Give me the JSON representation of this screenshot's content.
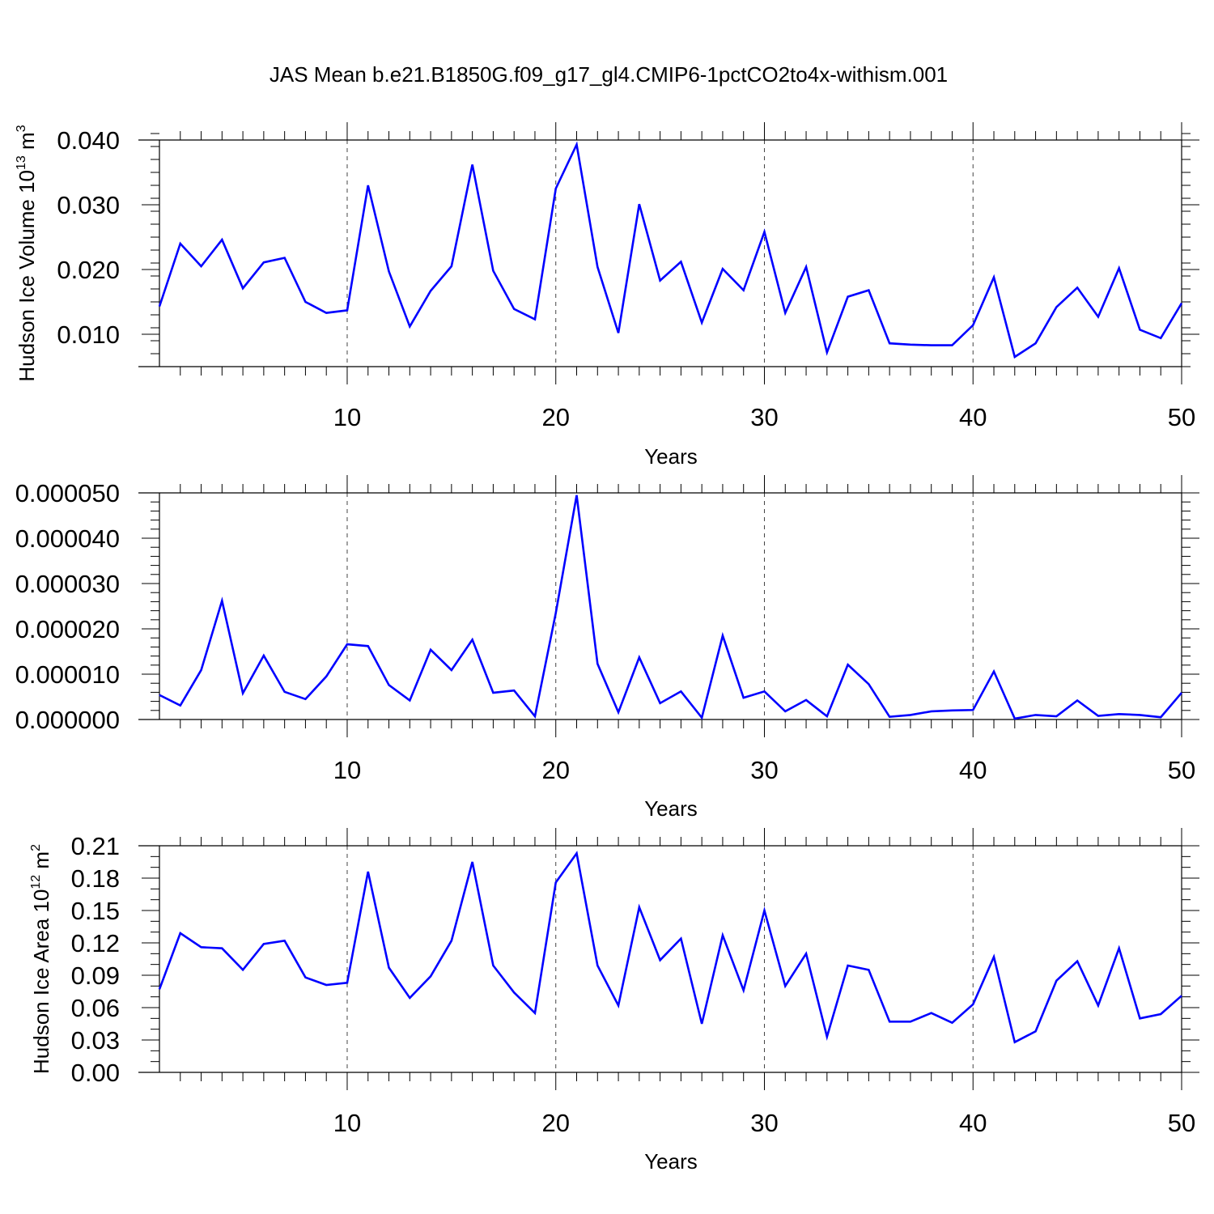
{
  "figure": {
    "title": "JAS Mean b.e21.B1850G.f09_g17_gl4.CMIP6-1pctCO2to4x-withism.001",
    "line_color": "#0000ff",
    "grid_color": "#444444"
  },
  "chart_data": [
    {
      "type": "line",
      "title": "",
      "xlabel": "Years",
      "ylabel": "Hudson Ice Volume 10",
      "ylabel_exp": "13",
      "ylabel_unit": "m",
      "ylabel_unit_exp": "3",
      "xlim": [
        1,
        50
      ],
      "ylim": [
        0.005,
        0.04
      ],
      "y_ticks": [
        0.01,
        0.02,
        0.03,
        0.04
      ],
      "y_tick_labels": [
        "0.010",
        "0.020",
        "0.030",
        "0.040"
      ],
      "y_minor_step": 0.002,
      "x_ticks": [
        10,
        20,
        30,
        40,
        50
      ],
      "x_tick_labels": [
        "10",
        "20",
        "30",
        "40",
        "50"
      ],
      "x_grid": [
        10,
        20,
        30,
        40
      ],
      "grid": "vertical dashed at major x ticks",
      "x": [
        1,
        2,
        3,
        4,
        5,
        6,
        7,
        8,
        9,
        10,
        11,
        12,
        13,
        14,
        15,
        16,
        17,
        18,
        19,
        20,
        21,
        22,
        23,
        24,
        25,
        26,
        27,
        28,
        29,
        30,
        31,
        32,
        33,
        34,
        35,
        36,
        37,
        38,
        39,
        40,
        41,
        42,
        43,
        44,
        45,
        46,
        47,
        48,
        49,
        50
      ],
      "series": [
        {
          "values": [
            0.0143,
            0.024,
            0.0205,
            0.0246,
            0.0171,
            0.0211,
            0.0218,
            0.015,
            0.0133,
            0.0137,
            0.033,
            0.0197,
            0.0112,
            0.0167,
            0.0205,
            0.0362,
            0.0198,
            0.0139,
            0.0123,
            0.0325,
            0.0393,
            0.0204,
            0.0102,
            0.0301,
            0.0183,
            0.0212,
            0.0118,
            0.0201,
            0.0168,
            0.0258,
            0.0133,
            0.0204,
            0.0072,
            0.0158,
            0.0168,
            0.0086,
            0.0084,
            0.0083,
            0.0083,
            0.0114,
            0.0188,
            0.0065,
            0.0086,
            0.0142,
            0.0172,
            0.0127,
            0.0202,
            0.0107,
            0.0094,
            0.0148
          ]
        }
      ]
    },
    {
      "type": "line",
      "title": "",
      "xlabel": "Years",
      "ylabel": "",
      "xlim": [
        1,
        50
      ],
      "ylim": [
        0.0,
        5e-05
      ],
      "y_ticks": [
        0.0,
        1e-05,
        2e-05,
        3e-05,
        4e-05,
        5e-05
      ],
      "y_tick_labels": [
        "0.000000",
        "0.000010",
        "0.000020",
        "0.000030",
        "0.000040",
        "0.000050"
      ],
      "y_minor_step": 2e-06,
      "x_ticks": [
        10,
        20,
        30,
        40,
        50
      ],
      "x_tick_labels": [
        "10",
        "20",
        "30",
        "40",
        "50"
      ],
      "x_grid": [
        10,
        20,
        30,
        40
      ],
      "grid": "vertical dashed at major x ticks",
      "x": [
        1,
        2,
        3,
        4,
        5,
        6,
        7,
        8,
        9,
        10,
        11,
        12,
        13,
        14,
        15,
        16,
        17,
        18,
        19,
        20,
        21,
        22,
        23,
        24,
        25,
        26,
        27,
        28,
        29,
        30,
        31,
        32,
        33,
        34,
        35,
        36,
        37,
        38,
        39,
        40,
        41,
        42,
        43,
        44,
        45,
        46,
        47,
        48,
        49,
        50
      ],
      "series": [
        {
          "values": [
            5.4e-06,
            3.1e-06,
            1.09e-05,
            2.62e-05,
            5.8e-06,
            1.41e-05,
            6.1e-06,
            4.5e-06,
            9.5e-06,
            1.66e-05,
            1.62e-05,
            7.6e-06,
            4.2e-06,
            1.54e-05,
            1.09e-05,
            1.76e-05,
            5.9e-06,
            6.4e-06,
            7e-07,
            2.35e-05,
            4.95e-05,
            1.23e-05,
            1.6e-06,
            1.37e-05,
            3.6e-06,
            6.2e-06,
            4e-07,
            1.85e-05,
            4.8e-06,
            6.2e-06,
            1.8e-06,
            4.3e-06,
            7e-07,
            1.21e-05,
            7.8e-06,
            6e-07,
            1e-06,
            1.8e-06,
            2e-06,
            2.1e-06,
            1.06e-05,
            2e-07,
            1e-06,
            7e-07,
            4.2e-06,
            8e-07,
            1.2e-06,
            1e-06,
            5e-07,
            5.9e-06
          ]
        }
      ]
    },
    {
      "type": "line",
      "title": "",
      "xlabel": "Years",
      "ylabel": "Hudson Ice Area 10",
      "ylabel_exp": "12",
      "ylabel_unit": "m",
      "ylabel_unit_exp": "2",
      "xlim": [
        1,
        50
      ],
      "ylim": [
        0.0,
        0.21
      ],
      "y_ticks": [
        0.0,
        0.03,
        0.06,
        0.09,
        0.12,
        0.15,
        0.18,
        0.21
      ],
      "y_tick_labels": [
        "0.00",
        "0.03",
        "0.06",
        "0.09",
        "0.12",
        "0.15",
        "0.18",
        "0.21"
      ],
      "y_minor_step": 0.01,
      "x_ticks": [
        10,
        20,
        30,
        40,
        50
      ],
      "x_tick_labels": [
        "10",
        "20",
        "30",
        "40",
        "50"
      ],
      "x_grid": [
        10,
        20,
        30,
        40
      ],
      "grid": "vertical dashed at major x ticks",
      "x": [
        1,
        2,
        3,
        4,
        5,
        6,
        7,
        8,
        9,
        10,
        11,
        12,
        13,
        14,
        15,
        16,
        17,
        18,
        19,
        20,
        21,
        22,
        23,
        24,
        25,
        26,
        27,
        28,
        29,
        30,
        31,
        32,
        33,
        34,
        35,
        36,
        37,
        38,
        39,
        40,
        41,
        42,
        43,
        44,
        45,
        46,
        47,
        48,
        49,
        50
      ],
      "series": [
        {
          "values": [
            0.077,
            0.129,
            0.116,
            0.115,
            0.095,
            0.119,
            0.122,
            0.088,
            0.081,
            0.083,
            0.186,
            0.097,
            0.069,
            0.089,
            0.122,
            0.195,
            0.099,
            0.074,
            0.055,
            0.176,
            0.203,
            0.099,
            0.062,
            0.153,
            0.104,
            0.124,
            0.045,
            0.127,
            0.076,
            0.15,
            0.08,
            0.11,
            0.033,
            0.099,
            0.095,
            0.047,
            0.047,
            0.055,
            0.046,
            0.063,
            0.107,
            0.028,
            0.038,
            0.085,
            0.103,
            0.062,
            0.115,
            0.05,
            0.054,
            0.071
          ]
        }
      ]
    }
  ]
}
